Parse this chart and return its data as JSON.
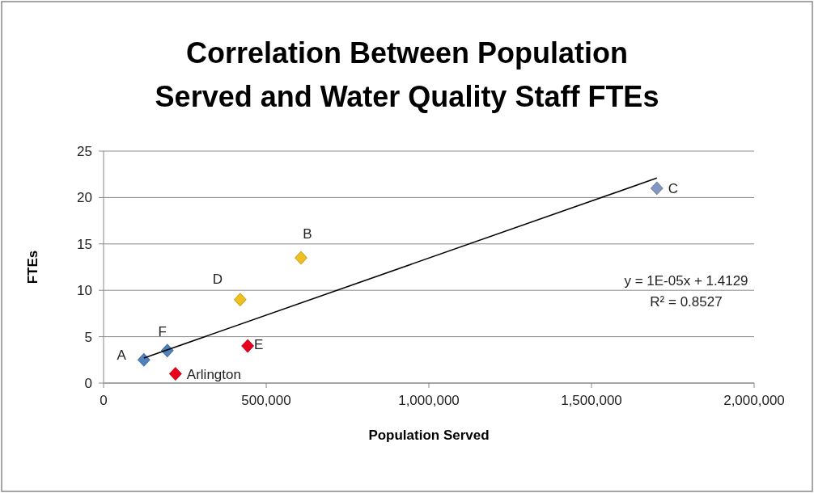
{
  "chart_data": {
    "type": "scatter",
    "title": "Correlation Between Population Served and Water Quality Staff FTEs",
    "xlabel": "Population Served",
    "ylabel": "FTEs",
    "xlim": [
      0,
      2000000
    ],
    "xticks": [
      {
        "value": 0,
        "label": "0"
      },
      {
        "value": 500000,
        "label": "500,000"
      },
      {
        "value": 1000000,
        "label": "1,000,000"
      },
      {
        "value": 1500000,
        "label": "1,500,000"
      },
      {
        "value": 2000000,
        "label": "2,000,000"
      }
    ],
    "ylim": [
      0,
      25
    ],
    "yticks": [
      0,
      5,
      10,
      15,
      20,
      25
    ],
    "grid": "y",
    "marker": "diamond",
    "series": [
      {
        "name": "A",
        "color": "#4f81bd",
        "x": [
          124000
        ],
        "values": [
          2.5
        ]
      },
      {
        "name": "F",
        "color": "#4f81bd",
        "x": [
          196000
        ],
        "values": [
          3.5
        ]
      },
      {
        "name": "Arlington",
        "color": "#e8001c",
        "x": [
          221000
        ],
        "values": [
          1
        ]
      },
      {
        "name": "E",
        "color": "#e8001c",
        "x": [
          443000
        ],
        "values": [
          4
        ]
      },
      {
        "name": "D",
        "color": "#f0c020",
        "x": [
          420000
        ],
        "values": [
          9
        ]
      },
      {
        "name": "B",
        "color": "#f0c020",
        "x": [
          607000
        ],
        "values": [
          13.5
        ]
      },
      {
        "name": "C",
        "color": "#8497c0",
        "x": [
          1701000
        ],
        "values": [
          21
        ]
      },
      {
        "type": "line",
        "color": "#000000",
        "x": [
          124000,
          1701000
        ],
        "values": [
          2.7,
          22.1
        ],
        "marker": "none"
      }
    ],
    "annotations": [
      "y = 1E-05x + 1.4129",
      "R² = 0.8527"
    ]
  }
}
